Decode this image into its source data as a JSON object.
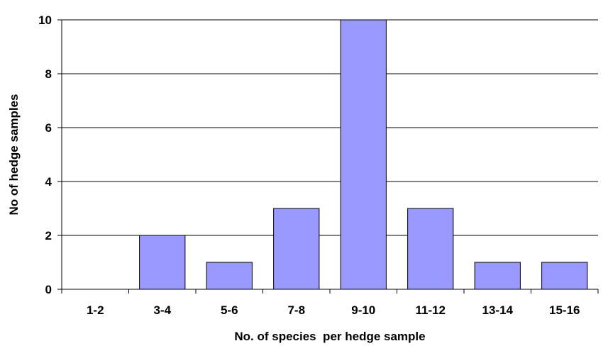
{
  "chart_data": {
    "type": "bar",
    "categories": [
      "1-2",
      "3-4",
      "5-6",
      "7-8",
      "9-10",
      "11-12",
      "13-14",
      "15-16"
    ],
    "values": [
      0,
      2,
      1,
      3,
      10,
      3,
      1,
      1
    ],
    "xlabel": "No. of species  per hedge sample",
    "ylabel": "No of hedge samples",
    "ylim": [
      0,
      10
    ],
    "yticks": [
      0,
      2,
      4,
      6,
      8,
      10
    ],
    "grid": true,
    "legend": "none",
    "colors": {
      "bar": "#9999ff",
      "bar_stroke": "#000000",
      "grid": "#000000"
    }
  }
}
